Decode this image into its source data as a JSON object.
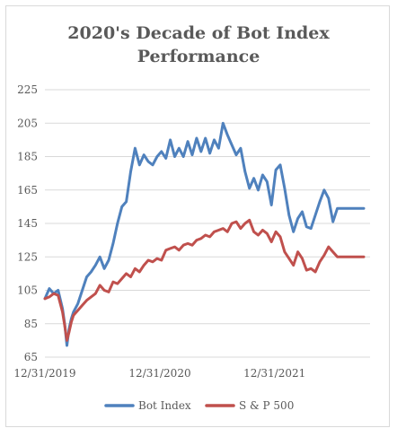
{
  "chart_data": {
    "type": "line",
    "title_line1": "2020's Decade of Bot Index",
    "title_line2": "Performance",
    "xlabel": "",
    "ylabel": "",
    "ylim": [
      65,
      225
    ],
    "yticks": [
      65,
      85,
      105,
      125,
      145,
      165,
      185,
      205,
      225
    ],
    "xlim": [
      "2019-12-31",
      "2022-10-31"
    ],
    "xticks": [
      "12/31/2019",
      "12/31/2020",
      "12/31/2021"
    ],
    "xtick_dates": [
      "2019-12-31",
      "2020-12-31",
      "2021-12-31"
    ],
    "grid": true,
    "legend_position": "bottom",
    "series": [
      {
        "name": "Bot Index",
        "color": "#4f81bd",
        "x": [
          "2019-12-31",
          "2020-01-14",
          "2020-01-28",
          "2020-02-11",
          "2020-02-25",
          "2020-03-03",
          "2020-03-10",
          "2020-03-17",
          "2020-03-24",
          "2020-03-31",
          "2020-04-14",
          "2020-04-28",
          "2020-05-12",
          "2020-05-26",
          "2020-06-09",
          "2020-06-23",
          "2020-07-07",
          "2020-07-21",
          "2020-08-04",
          "2020-08-18",
          "2020-09-01",
          "2020-09-15",
          "2020-09-29",
          "2020-10-13",
          "2020-10-27",
          "2020-11-10",
          "2020-11-24",
          "2020-12-08",
          "2020-12-22",
          "2021-01-05",
          "2021-01-19",
          "2021-02-02",
          "2021-02-16",
          "2021-03-02",
          "2021-03-16",
          "2021-03-30",
          "2021-04-13",
          "2021-04-27",
          "2021-05-11",
          "2021-05-25",
          "2021-06-08",
          "2021-06-22",
          "2021-07-06",
          "2021-07-20",
          "2021-08-03",
          "2021-08-17",
          "2021-08-31",
          "2021-09-14",
          "2021-09-28",
          "2021-10-12",
          "2021-10-26",
          "2021-11-09",
          "2021-11-23",
          "2021-12-07",
          "2021-12-21",
          "2022-01-04",
          "2022-01-18",
          "2022-02-01",
          "2022-02-15",
          "2022-03-01",
          "2022-03-15",
          "2022-03-29",
          "2022-04-12",
          "2022-04-26",
          "2022-05-10",
          "2022-05-24",
          "2022-06-07",
          "2022-06-21",
          "2022-07-05",
          "2022-07-19",
          "2022-08-02",
          "2022-08-16",
          "2022-08-30",
          "2022-09-13",
          "2022-09-27",
          "2022-10-11"
        ],
        "y": [
          100,
          106,
          103,
          105,
          94,
          85,
          72,
          82,
          88,
          92,
          97,
          105,
          113,
          116,
          120,
          125,
          118,
          123,
          133,
          145,
          155,
          158,
          176,
          190,
          180,
          186,
          182,
          180,
          185,
          188,
          184,
          195,
          185,
          190,
          185,
          194,
          186,
          196,
          188,
          196,
          187,
          195,
          190,
          205,
          198,
          192,
          186,
          190,
          176,
          166,
          172,
          165,
          174,
          170,
          156,
          177,
          180,
          166,
          150,
          140,
          148,
          152,
          143,
          142,
          150,
          158,
          165,
          160,
          146,
          154,
          154,
          154,
          154,
          154,
          154,
          154
        ]
      },
      {
        "name": "S & P 500",
        "color": "#c0504d",
        "x": [
          "2019-12-31",
          "2020-01-14",
          "2020-01-28",
          "2020-02-11",
          "2020-02-25",
          "2020-03-03",
          "2020-03-10",
          "2020-03-17",
          "2020-03-24",
          "2020-03-31",
          "2020-04-14",
          "2020-04-28",
          "2020-05-12",
          "2020-05-26",
          "2020-06-09",
          "2020-06-23",
          "2020-07-07",
          "2020-07-21",
          "2020-08-04",
          "2020-08-18",
          "2020-09-01",
          "2020-09-15",
          "2020-09-29",
          "2020-10-13",
          "2020-10-27",
          "2020-11-10",
          "2020-11-24",
          "2020-12-08",
          "2020-12-22",
          "2021-01-05",
          "2021-01-19",
          "2021-02-02",
          "2021-02-16",
          "2021-03-02",
          "2021-03-16",
          "2021-03-30",
          "2021-04-13",
          "2021-04-27",
          "2021-05-11",
          "2021-05-25",
          "2021-06-08",
          "2021-06-22",
          "2021-07-06",
          "2021-07-20",
          "2021-08-03",
          "2021-08-17",
          "2021-08-31",
          "2021-09-14",
          "2021-09-28",
          "2021-10-12",
          "2021-10-26",
          "2021-11-09",
          "2021-11-23",
          "2021-12-07",
          "2021-12-21",
          "2022-01-04",
          "2022-01-18",
          "2022-02-01",
          "2022-02-15",
          "2022-03-01",
          "2022-03-15",
          "2022-03-29",
          "2022-04-12",
          "2022-04-26",
          "2022-05-10",
          "2022-05-24",
          "2022-06-07",
          "2022-06-21",
          "2022-07-05",
          "2022-07-19",
          "2022-08-02",
          "2022-08-16",
          "2022-08-30",
          "2022-09-13",
          "2022-09-27",
          "2022-10-11"
        ],
        "y": [
          100,
          101,
          103,
          102,
          92,
          84,
          75,
          80,
          86,
          90,
          93,
          96,
          99,
          101,
          103,
          108,
          105,
          104,
          110,
          109,
          112,
          115,
          113,
          118,
          116,
          120,
          123,
          122,
          124,
          123,
          129,
          130,
          131,
          129,
          132,
          133,
          132,
          135,
          136,
          138,
          137,
          140,
          141,
          142,
          140,
          145,
          146,
          142,
          145,
          147,
          140,
          138,
          141,
          139,
          134,
          140,
          137,
          128,
          124,
          120,
          128,
          124,
          117,
          118,
          116,
          122,
          126,
          131,
          128,
          125,
          125,
          125,
          125,
          125,
          125,
          125
        ]
      }
    ]
  }
}
